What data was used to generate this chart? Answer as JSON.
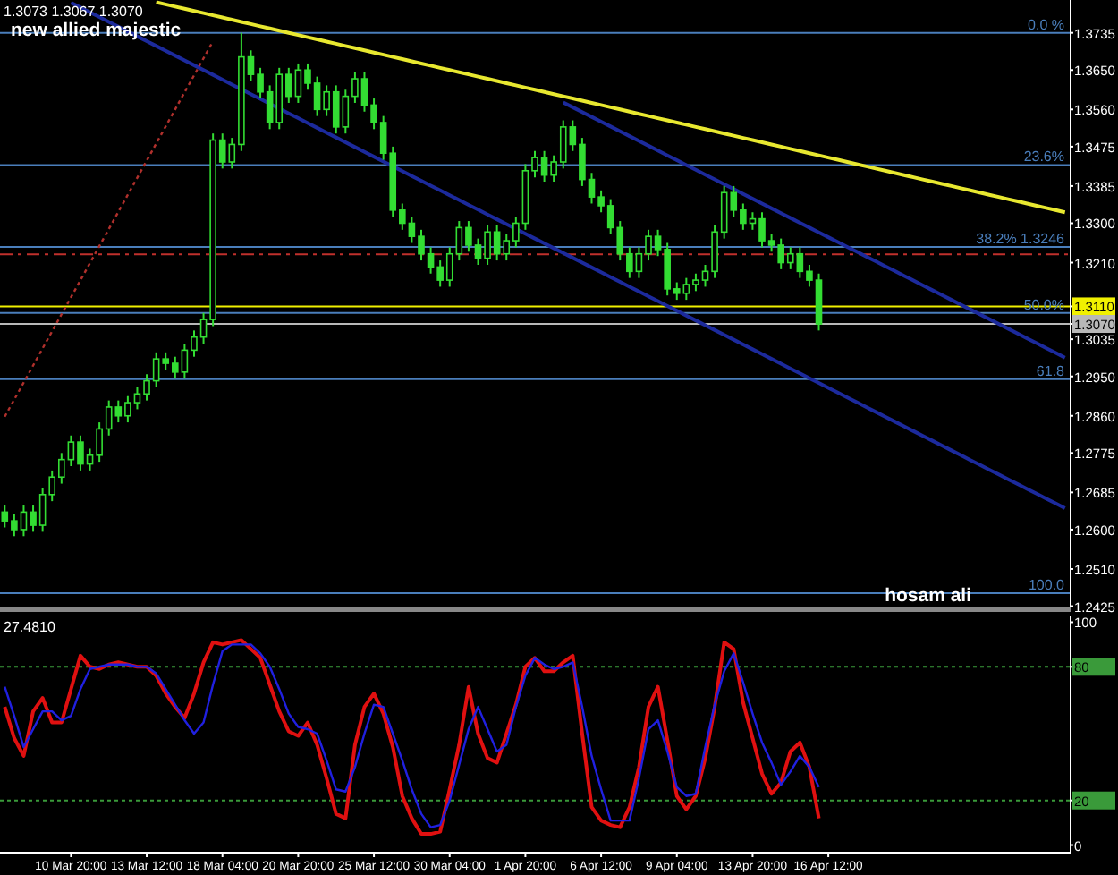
{
  "chart_data": [
    {
      "type": "candlestick",
      "title": "1.3073 1.3067 1.3070",
      "subtitle": "new allied majestic",
      "color": "#33dd33",
      "ylim": [
        1.242,
        1.381
      ],
      "tick_labels": "y",
      "annotations": [
        "hosam ali",
        {
          "text": "0.0 %",
          "y": 1.3735
        },
        {
          "text": "23.6%",
          "y": 1.3433
        },
        {
          "text": "38.2% 1.3246",
          "y": 1.3246
        },
        {
          "text": "50.0%",
          "y": 1.3095
        },
        {
          "text": "61.8",
          "y": 1.2944
        },
        {
          "text": "100.0",
          "y": 1.2455
        }
      ],
      "yticks": [
        1.3735,
        {
          "value": 1.365,
          "label": "1.3650"
        },
        {
          "value": 1.356,
          "label": "1.3560"
        },
        1.3475,
        1.3385,
        {
          "value": 1.33,
          "label": "1.3300"
        },
        {
          "value": 1.321,
          "label": "1.3210"
        },
        {
          "value": 1.311,
          "label": "1.3110"
        },
        {
          "value": 1.307,
          "label": "1.3070"
        },
        1.3035,
        {
          "value": 1.295,
          "label": "1.2950"
        },
        {
          "value": 1.286,
          "label": "1.2860"
        },
        1.2775,
        1.2685,
        {
          "value": 1.26,
          "label": "1.2600"
        },
        {
          "value": 1.251,
          "label": "1.2510"
        },
        1.2425
      ],
      "categories": [
        null,
        null,
        null,
        null,
        null,
        null,
        null,
        null,
        null,
        null,
        null,
        null,
        null,
        null,
        null,
        null,
        null,
        null,
        null,
        null,
        null,
        null,
        null,
        null,
        null,
        null,
        null,
        null,
        null,
        null,
        null,
        null,
        null,
        null,
        null,
        null,
        null,
        null,
        null,
        null,
        null,
        null,
        null,
        null,
        null,
        null,
        null,
        null,
        null,
        null,
        null,
        null,
        null,
        null,
        null,
        null,
        null,
        null,
        null,
        null,
        null,
        null,
        null,
        null,
        null,
        null,
        null,
        null,
        null,
        null,
        null,
        null,
        null,
        null,
        null,
        null,
        null,
        null,
        null,
        null,
        null,
        null,
        null,
        null,
        null,
        null,
        null,
        null,
        null,
        null,
        null,
        null,
        null,
        null,
        null,
        null,
        null,
        null,
        null,
        null,
        null,
        null,
        null,
        null,
        null,
        null,
        null,
        null,
        null,
        null,
        null,
        null,
        null
      ],
      "ohlc": [
        [
          1.264,
          1.2655,
          1.2605,
          1.262
        ],
        [
          1.262,
          1.2635,
          1.2585,
          1.26
        ],
        [
          1.26,
          1.2655,
          1.2585,
          1.264
        ],
        [
          1.264,
          1.2655,
          1.2595,
          1.261
        ],
        [
          1.261,
          1.2695,
          1.2595,
          1.268
        ],
        [
          1.268,
          1.2735,
          1.2665,
          1.272
        ],
        [
          1.272,
          1.2775,
          1.2705,
          1.276
        ],
        [
          1.276,
          1.2815,
          1.2745,
          1.28
        ],
        [
          1.28,
          1.2815,
          1.2735,
          1.275
        ],
        [
          1.275,
          1.2785,
          1.2735,
          1.277
        ],
        [
          1.277,
          1.2845,
          1.2755,
          1.283
        ],
        [
          1.283,
          1.2895,
          1.2815,
          1.288
        ],
        [
          1.288,
          1.2895,
          1.2845,
          1.286
        ],
        [
          1.286,
          1.2905,
          1.2845,
          1.289
        ],
        [
          1.289,
          1.2925,
          1.2875,
          1.291
        ],
        [
          1.291,
          1.2955,
          1.2895,
          1.294
        ],
        [
          1.294,
          1.3005,
          1.2925,
          1.299
        ],
        [
          1.299,
          1.3005,
          1.2965,
          1.298
        ],
        [
          1.298,
          1.2995,
          1.2945,
          1.296
        ],
        [
          1.296,
          1.3025,
          1.2945,
          1.301
        ],
        [
          1.301,
          1.3055,
          1.2995,
          1.304
        ],
        [
          1.304,
          1.3095,
          1.3025,
          1.308
        ],
        [
          1.308,
          1.3505,
          1.3065,
          1.349
        ],
        [
          1.349,
          1.3505,
          1.3425,
          1.344
        ],
        [
          1.344,
          1.3495,
          1.3425,
          1.348
        ],
        [
          1.348,
          1.3735,
          1.3465,
          1.368
        ],
        [
          1.368,
          1.3695,
          1.3625,
          1.364
        ],
        [
          1.364,
          1.3655,
          1.3585,
          1.36
        ],
        [
          1.36,
          1.3615,
          1.3515,
          1.353
        ],
        [
          1.353,
          1.3655,
          1.3515,
          1.364
        ],
        [
          1.364,
          1.3655,
          1.3575,
          1.359
        ],
        [
          1.359,
          1.3665,
          1.3575,
          1.365
        ],
        [
          1.365,
          1.3665,
          1.3605,
          1.362
        ],
        [
          1.362,
          1.3635,
          1.3545,
          1.356
        ],
        [
          1.356,
          1.3615,
          1.3545,
          1.36
        ],
        [
          1.36,
          1.3615,
          1.3505,
          1.352
        ],
        [
          1.352,
          1.3605,
          1.3505,
          1.359
        ],
        [
          1.359,
          1.3645,
          1.3575,
          1.363
        ],
        [
          1.363,
          1.3645,
          1.3555,
          1.357
        ],
        [
          1.357,
          1.3585,
          1.3515,
          1.353
        ],
        [
          1.353,
          1.3545,
          1.3445,
          1.346
        ],
        [
          1.346,
          1.3475,
          1.3315,
          1.333
        ],
        [
          1.333,
          1.3345,
          1.3285,
          1.33
        ],
        [
          1.33,
          1.3315,
          1.3255,
          1.327
        ],
        [
          1.327,
          1.3285,
          1.3215,
          1.323
        ],
        [
          1.323,
          1.3245,
          1.3185,
          1.32
        ],
        [
          1.32,
          1.3215,
          1.3155,
          1.317
        ],
        [
          1.317,
          1.3245,
          1.3155,
          1.323
        ],
        [
          1.323,
          1.3305,
          1.3215,
          1.329
        ],
        [
          1.329,
          1.3305,
          1.3235,
          1.325
        ],
        [
          1.325,
          1.3265,
          1.3205,
          1.322
        ],
        [
          1.322,
          1.3295,
          1.3205,
          1.328
        ],
        [
          1.328,
          1.3295,
          1.3215,
          1.323
        ],
        [
          1.323,
          1.3275,
          1.3215,
          1.326
        ],
        [
          1.326,
          1.3315,
          1.3245,
          1.33
        ],
        [
          1.33,
          1.3435,
          1.3285,
          1.342
        ],
        [
          1.342,
          1.3465,
          1.3405,
          1.345
        ],
        [
          1.345,
          1.3465,
          1.3395,
          1.341
        ],
        [
          1.341,
          1.3455,
          1.3395,
          1.344
        ],
        [
          1.344,
          1.3535,
          1.3425,
          1.352
        ],
        [
          1.352,
          1.3535,
          1.3465,
          1.348
        ],
        [
          1.348,
          1.3495,
          1.3385,
          1.34
        ],
        [
          1.34,
          1.3415,
          1.3345,
          1.336
        ],
        [
          1.336,
          1.3375,
          1.3325,
          1.334
        ],
        [
          1.334,
          1.3355,
          1.3275,
          1.329
        ],
        [
          1.329,
          1.3305,
          1.3215,
          1.323
        ],
        [
          1.323,
          1.3245,
          1.3175,
          1.319
        ],
        [
          1.319,
          1.3245,
          1.3175,
          1.323
        ],
        [
          1.323,
          1.3285,
          1.3215,
          1.327
        ],
        [
          1.327,
          1.3285,
          1.3225,
          1.324
        ],
        [
          1.324,
          1.3255,
          1.3135,
          1.315
        ],
        [
          1.315,
          1.3165,
          1.3125,
          1.314
        ],
        [
          1.314,
          1.3175,
          1.3125,
          1.316
        ],
        [
          1.316,
          1.3185,
          1.3145,
          1.317
        ],
        [
          1.317,
          1.3205,
          1.3155,
          1.319
        ],
        [
          1.319,
          1.3295,
          1.3175,
          1.328
        ],
        [
          1.328,
          1.3385,
          1.3265,
          1.337
        ],
        [
          1.337,
          1.3385,
          1.3315,
          1.333
        ],
        [
          1.333,
          1.3345,
          1.3285,
          1.33
        ],
        [
          1.33,
          1.3325,
          1.3285,
          1.331
        ],
        [
          1.331,
          1.3325,
          1.3245,
          1.326
        ],
        [
          1.326,
          1.3275,
          1.3235,
          1.325
        ],
        [
          1.325,
          1.3265,
          1.3195,
          1.321
        ],
        [
          1.321,
          1.3245,
          1.3195,
          1.323
        ],
        [
          1.323,
          1.3245,
          1.3175,
          1.319
        ],
        [
          1.319,
          1.3205,
          1.3155,
          1.317
        ],
        [
          1.317,
          1.3185,
          1.3055,
          1.307
        ],
        null,
        null,
        null,
        null,
        null,
        null,
        null,
        null,
        null,
        null,
        null,
        null,
        null,
        null,
        null,
        null,
        null,
        null,
        null,
        null,
        null,
        null,
        null,
        null,
        null,
        null
      ],
      "series": [
        {
          "type": "line",
          "color": "#e8e830",
          "values": [
            null,
            null,
            null,
            null,
            null,
            null,
            null,
            null,
            null,
            null,
            null,
            null,
            null,
            null,
            null,
            null,
            1.3805,
            1.38,
            1.3795,
            1.379,
            1.3785,
            1.378,
            1.3775,
            1.377,
            1.3765,
            1.376,
            1.3755,
            1.375,
            1.3745,
            1.374,
            1.3735,
            1.373,
            1.3725,
            1.372,
            1.3715,
            1.371,
            1.3705,
            1.37,
            1.3695,
            1.369,
            1.3685,
            1.368,
            1.3675,
            1.367,
            1.3665,
            1.366,
            1.3655,
            1.365,
            1.3645,
            1.364,
            1.3635,
            1.363,
            1.3625,
            1.362,
            1.3615,
            1.361,
            1.3605,
            1.36,
            1.3595,
            1.359,
            1.3585,
            1.358,
            1.3575,
            1.357,
            1.3565,
            1.356,
            1.3555,
            1.355,
            1.3545,
            1.354,
            1.3535,
            1.353,
            1.3525,
            1.352,
            1.3515,
            1.351,
            1.3505,
            1.35,
            1.3495,
            1.349,
            1.3485,
            1.348,
            1.3475,
            1.347,
            1.3465,
            1.346,
            1.3455,
            1.345,
            1.3445,
            1.344,
            1.3435,
            1.343,
            1.3425,
            1.342,
            1.3415,
            1.341,
            1.3405,
            1.34,
            1.3395,
            1.339,
            1.3385,
            1.338,
            1.3375,
            1.337,
            1.3365,
            1.336,
            1.3355,
            1.335,
            1.3345,
            1.334,
            1.3335,
            1.333,
            1.3325
          ]
        },
        {
          "type": "line",
          "color": "#1c2a9c",
          "values": [
            null,
            null,
            null,
            null,
            null,
            null,
            null,
            1.3804,
            1.3793,
            1.3782,
            1.3771,
            1.376,
            1.3749,
            1.3738,
            1.3727,
            1.3716,
            1.3705,
            1.3694,
            1.3683,
            1.3672,
            1.3661,
            1.365,
            1.3639,
            1.3628,
            1.3617,
            1.3606,
            1.3595,
            1.3584,
            1.3573,
            1.3562,
            1.3551,
            1.354,
            1.3529,
            1.3518,
            1.3507,
            1.3496,
            1.3485,
            1.3474,
            1.3463,
            1.3452,
            1.3441,
            1.343,
            1.3419,
            1.3408,
            1.3397,
            1.3386,
            1.3375,
            1.3364,
            1.3353,
            1.3342,
            1.3331,
            1.332,
            1.3309,
            1.3298,
            1.3287,
            1.3276,
            1.3265,
            1.3254,
            1.3243,
            1.3232,
            1.3221,
            1.321,
            1.3199,
            1.3188,
            1.3177,
            1.3166,
            1.3155,
            1.3144,
            1.3133,
            1.3122,
            1.3111,
            1.31,
            1.3089,
            1.3078,
            1.3067,
            1.3056,
            1.3045,
            1.3034,
            1.3023,
            1.3012,
            1.3001,
            1.299,
            1.2979,
            1.2968,
            1.2957,
            1.2946,
            1.2935,
            1.2924,
            1.2913,
            1.2902,
            1.2891,
            1.288,
            1.2869,
            1.2858,
            1.2847,
            1.2836,
            1.2825,
            1.2814,
            1.2803,
            1.2792,
            1.2781,
            1.277,
            1.2759,
            1.2748,
            1.2737,
            1.2726,
            1.2715,
            1.2704,
            1.2693,
            1.2682,
            1.2671,
            1.266,
            1.2649
          ]
        },
        {
          "type": "line",
          "color": "#1c2a9c",
          "values": [
            null,
            null,
            null,
            null,
            null,
            null,
            null,
            null,
            null,
            null,
            null,
            null,
            null,
            null,
            null,
            null,
            null,
            null,
            null,
            null,
            null,
            null,
            null,
            null,
            null,
            null,
            null,
            null,
            null,
            null,
            null,
            null,
            null,
            null,
            null,
            null,
            null,
            null,
            null,
            null,
            null,
            null,
            null,
            null,
            null,
            null,
            null,
            null,
            null,
            null,
            null,
            null,
            null,
            null,
            null,
            null,
            null,
            null,
            null,
            1.3576,
            1.3565,
            1.3554,
            1.3543,
            1.3532,
            1.3521,
            1.351,
            1.3499,
            1.3488,
            1.3477,
            1.3466,
            1.3455,
            1.3444,
            1.3433,
            1.3422,
            1.3411,
            1.34,
            1.3389,
            1.3378,
            1.3367,
            1.3356,
            1.3345,
            1.3334,
            1.3323,
            1.3312,
            1.3301,
            1.329,
            1.3279,
            1.3268,
            1.3257,
            1.3246,
            1.3235,
            1.3224,
            1.3213,
            1.3202,
            1.3191,
            1.318,
            1.3169,
            1.3158,
            1.3147,
            1.3136,
            1.3125,
            1.3114,
            1.3103,
            1.3092,
            1.3081,
            1.307,
            1.3059,
            1.3048,
            1.3037,
            1.3026,
            1.3015,
            1.3004,
            1.2993
          ]
        },
        {
          "type": "line",
          "color": "#b0302c",
          "line_style": "dotted",
          "values": [
            1.2858,
            1.2897,
            1.2936,
            1.2975,
            1.3014,
            1.3053,
            1.3092,
            1.3131,
            1.317,
            1.3209,
            1.3248,
            1.3287,
            1.3326,
            1.3365,
            1.3404,
            1.3443,
            1.3482,
            1.3521,
            1.356,
            1.3599,
            1.3638,
            1.3677,
            1.3716,
            null,
            null,
            null,
            null,
            null,
            null,
            null,
            null,
            null,
            null,
            null,
            null,
            null,
            null,
            null,
            null,
            null,
            null,
            null,
            null,
            null,
            null,
            null,
            null,
            null,
            null,
            null,
            null,
            null,
            null,
            null,
            null,
            null,
            null,
            null,
            null,
            null,
            null,
            null,
            null,
            null,
            null,
            null,
            null,
            null,
            null,
            null,
            null,
            null,
            null,
            null,
            null,
            null,
            null,
            null,
            null,
            null,
            null,
            null,
            null,
            null,
            null,
            null,
            null,
            null,
            null,
            null,
            null,
            null,
            null,
            null,
            null,
            null,
            null,
            null,
            null,
            null,
            null,
            null,
            null,
            null,
            null,
            null,
            null,
            null,
            null,
            null,
            null,
            null,
            null
          ]
        }
      ],
      "ref_lines": [
        {
          "axis": "y",
          "value": 1.3735,
          "color": "#4a7ebb"
        },
        {
          "axis": "y",
          "value": 1.3433,
          "color": "#4a7ebb"
        },
        {
          "axis": "y",
          "value": 1.3246,
          "color": "#4a7ebb"
        },
        {
          "axis": "y",
          "value": 1.3095,
          "color": "#4a7ebb"
        },
        {
          "axis": "y",
          "value": 1.2944,
          "color": "#4a7ebb"
        },
        {
          "axis": "y",
          "value": 1.2455,
          "color": "#4a7ebb"
        },
        {
          "axis": "y",
          "value": 1.3229,
          "color": "#c0302c",
          "line_style": "dashed"
        },
        {
          "axis": "y",
          "value": 1.311,
          "color": "#f0f000"
        },
        {
          "axis": "y",
          "value": 1.307,
          "color": "#b8b8b8"
        }
      ]
    },
    {
      "type": "line",
      "title": "27.4810",
      "ylim": [
        -3,
        103
      ],
      "yticks": [
        0,
        20,
        80,
        100
      ],
      "categories": [
        null,
        null,
        null,
        null,
        null,
        null,
        null,
        "10 Mar 20:00",
        null,
        null,
        null,
        null,
        null,
        null,
        null,
        "13 Mar 12:00",
        null,
        null,
        null,
        null,
        null,
        null,
        null,
        "18 Mar 04:00",
        null,
        null,
        null,
        null,
        null,
        null,
        null,
        "20 Mar 20:00",
        null,
        null,
        null,
        null,
        null,
        null,
        null,
        "25 Mar 12:00",
        null,
        null,
        null,
        null,
        null,
        null,
        null,
        "30 Mar 04:00",
        null,
        null,
        null,
        null,
        null,
        null,
        null,
        "1 Apr 20:00",
        null,
        null,
        null,
        null,
        null,
        null,
        null,
        "6 Apr 12:00",
        null,
        null,
        null,
        null,
        null,
        null,
        null,
        "9 Apr 04:00",
        null,
        null,
        null,
        null,
        null,
        null,
        null,
        "13 Apr 20:00",
        null,
        null,
        null,
        null,
        null,
        null,
        null,
        "16 Apr 12:00",
        null,
        null,
        null,
        null,
        null,
        null,
        null,
        null,
        null,
        null,
        null,
        null,
        null,
        null,
        null,
        null,
        null,
        null,
        null,
        null,
        null,
        null,
        null,
        null,
        null
      ],
      "series": [
        {
          "color": "#e01010",
          "values": [
            62,
            48,
            40,
            60,
            66,
            55,
            55,
            70,
            85,
            80,
            79,
            81,
            82,
            81,
            80,
            80,
            76,
            68,
            62,
            57,
            68,
            82,
            91,
            90,
            91,
            92,
            88,
            84,
            72,
            60,
            51,
            49,
            55,
            45,
            30,
            14,
            12,
            45,
            62,
            68,
            59,
            44,
            22,
            12,
            5,
            5,
            6,
            25,
            45,
            71,
            50,
            39,
            37,
            50,
            63,
            80,
            84,
            78,
            78,
            82,
            85,
            50,
            17,
            11,
            9,
            8,
            17,
            35,
            62,
            71,
            47,
            22,
            16,
            22,
            39,
            62,
            91,
            88,
            64,
            48,
            32,
            23,
            28,
            42,
            46,
            35,
            12,
            null,
            null,
            null,
            null,
            null,
            null,
            null,
            null,
            null,
            null,
            null,
            null,
            null,
            null,
            null,
            null,
            null,
            null,
            null,
            null,
            null,
            null,
            null,
            null,
            null,
            null
          ]
        },
        {
          "color": "#2020e0",
          "values": [
            71,
            58,
            44,
            52,
            60,
            60,
            56,
            58,
            70,
            79,
            80,
            81,
            81,
            81,
            80,
            80,
            77,
            70,
            63,
            56,
            50,
            55,
            72,
            87,
            90,
            90,
            90,
            86,
            80,
            70,
            59,
            53,
            52,
            50,
            38,
            25,
            24,
            35,
            50,
            63,
            62,
            50,
            38,
            25,
            14,
            8,
            9,
            20,
            36,
            52,
            62,
            52,
            42,
            45,
            62,
            76,
            84,
            81,
            79,
            80,
            82,
            62,
            40,
            25,
            11,
            11,
            11,
            30,
            52,
            56,
            42,
            26,
            22,
            23,
            44,
            63,
            78,
            86,
            73,
            59,
            46,
            37,
            27,
            33,
            40,
            35,
            26,
            null,
            null,
            null,
            null,
            null,
            null,
            null,
            null,
            null,
            null,
            null,
            null,
            null,
            null,
            null,
            null,
            null,
            null,
            null,
            null,
            null,
            null,
            null,
            null,
            null,
            null
          ]
        }
      ],
      "ref_lines": [
        {
          "axis": "y",
          "value": 20,
          "color": "#3a9a3a",
          "line_style": "dotted"
        },
        {
          "axis": "y",
          "value": 80,
          "color": "#3a9a3a",
          "line_style": "dotted"
        }
      ]
    }
  ]
}
